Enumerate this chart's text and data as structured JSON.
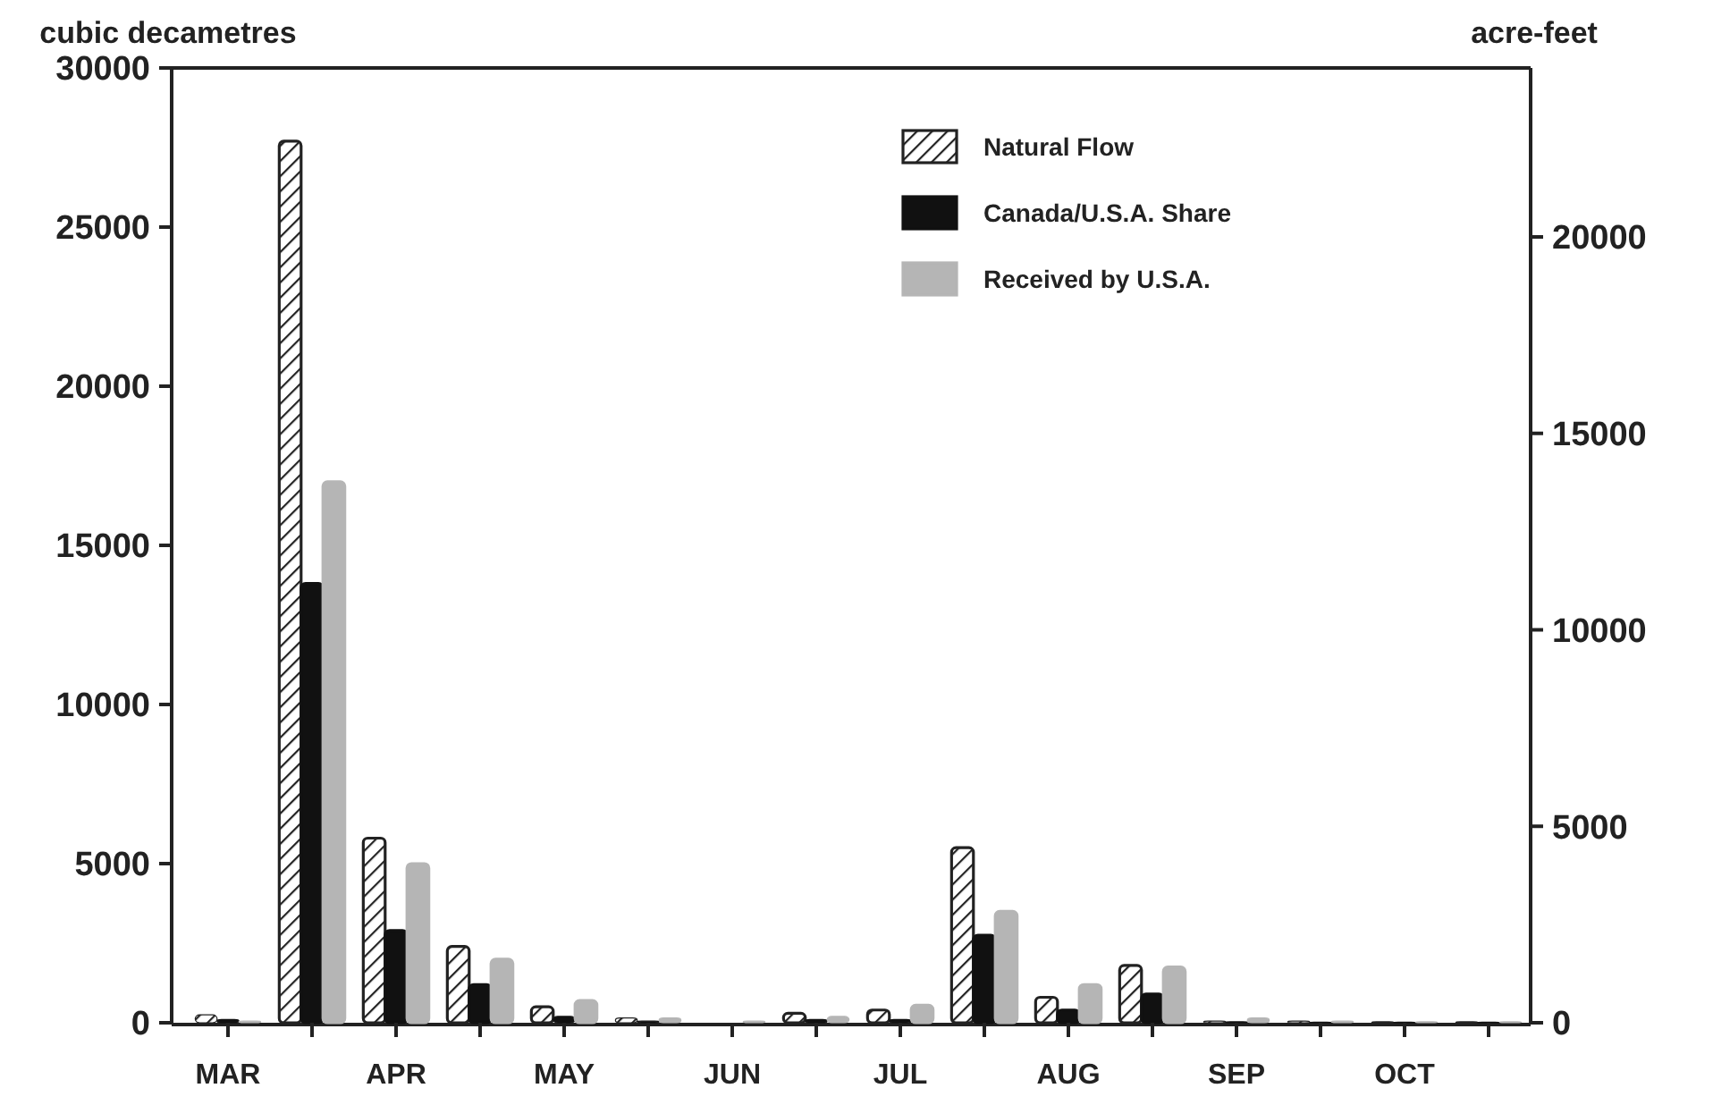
{
  "chart_data": {
    "type": "bar",
    "ylabel": "cubic decametres",
    "y2label": "acre-feet",
    "categories": [
      "MAR",
      null,
      "APR",
      null,
      "MAY",
      null,
      "JUN",
      null,
      "JUL",
      null,
      "AUG",
      null,
      "SEP",
      null,
      "OCT",
      null
    ],
    "series": [
      {
        "name": "Natural Flow",
        "color": "#222222",
        "values": [
          250,
          27700,
          5800,
          2400,
          500,
          150,
          0,
          300,
          400,
          5500,
          800,
          1800,
          50,
          50,
          30,
          30
        ]
      },
      {
        "name": "Canada/U.S.A. Share",
        "color": "#111111",
        "values": [
          100,
          13800,
          2900,
          1200,
          200,
          50,
          0,
          100,
          100,
          2750,
          400,
          900,
          30,
          20,
          20,
          20
        ]
      },
      {
        "name": "Received by U.S.A.",
        "color": "#b5b5b5",
        "values": [
          50,
          17000,
          5000,
          2000,
          700,
          150,
          50,
          200,
          550,
          3500,
          1200,
          1750,
          150,
          50,
          30,
          30
        ]
      }
    ],
    "ylim": [
      0,
      30000
    ],
    "yticks": [
      0,
      5000,
      10000,
      15000,
      20000,
      25000,
      30000
    ],
    "y2lim": [
      0,
      24300
    ],
    "y2ticks": [
      0,
      5000,
      10000,
      15000,
      20000
    ],
    "grid": false,
    "legend": "top right"
  }
}
